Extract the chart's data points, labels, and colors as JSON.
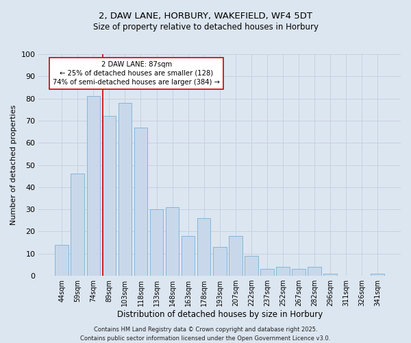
{
  "title_line1": "2, DAW LANE, HORBURY, WAKEFIELD, WF4 5DT",
  "title_line2": "Size of property relative to detached houses in Horbury",
  "xlabel": "Distribution of detached houses by size in Horbury",
  "ylabel": "Number of detached properties",
  "categories": [
    "44sqm",
    "59sqm",
    "74sqm",
    "89sqm",
    "103sqm",
    "118sqm",
    "133sqm",
    "148sqm",
    "163sqm",
    "178sqm",
    "193sqm",
    "207sqm",
    "222sqm",
    "237sqm",
    "252sqm",
    "267sqm",
    "282sqm",
    "296sqm",
    "311sqm",
    "326sqm",
    "341sqm"
  ],
  "values": [
    14,
    46,
    81,
    72,
    78,
    67,
    30,
    31,
    18,
    26,
    13,
    18,
    9,
    3,
    4,
    3,
    4,
    1,
    0,
    0,
    1
  ],
  "bar_color": "#c8d8ea",
  "bar_edge_color": "#7aafd4",
  "vline_x_index": 3,
  "vline_color": "#cc0000",
  "annotation_text": "2 DAW LANE: 87sqm\n← 25% of detached houses are smaller (128)\n74% of semi-detached houses are larger (384) →",
  "annotation_box_facecolor": "#ffffff",
  "annotation_box_edgecolor": "#cc0000",
  "ylim": [
    0,
    100
  ],
  "yticks": [
    0,
    10,
    20,
    30,
    40,
    50,
    60,
    70,
    80,
    90,
    100
  ],
  "grid_color": "#c8d0de",
  "bg_color": "#dce6f0",
  "footer_text": "Contains HM Land Registry data © Crown copyright and database right 2025.\nContains public sector information licensed under the Open Government Licence v3.0."
}
